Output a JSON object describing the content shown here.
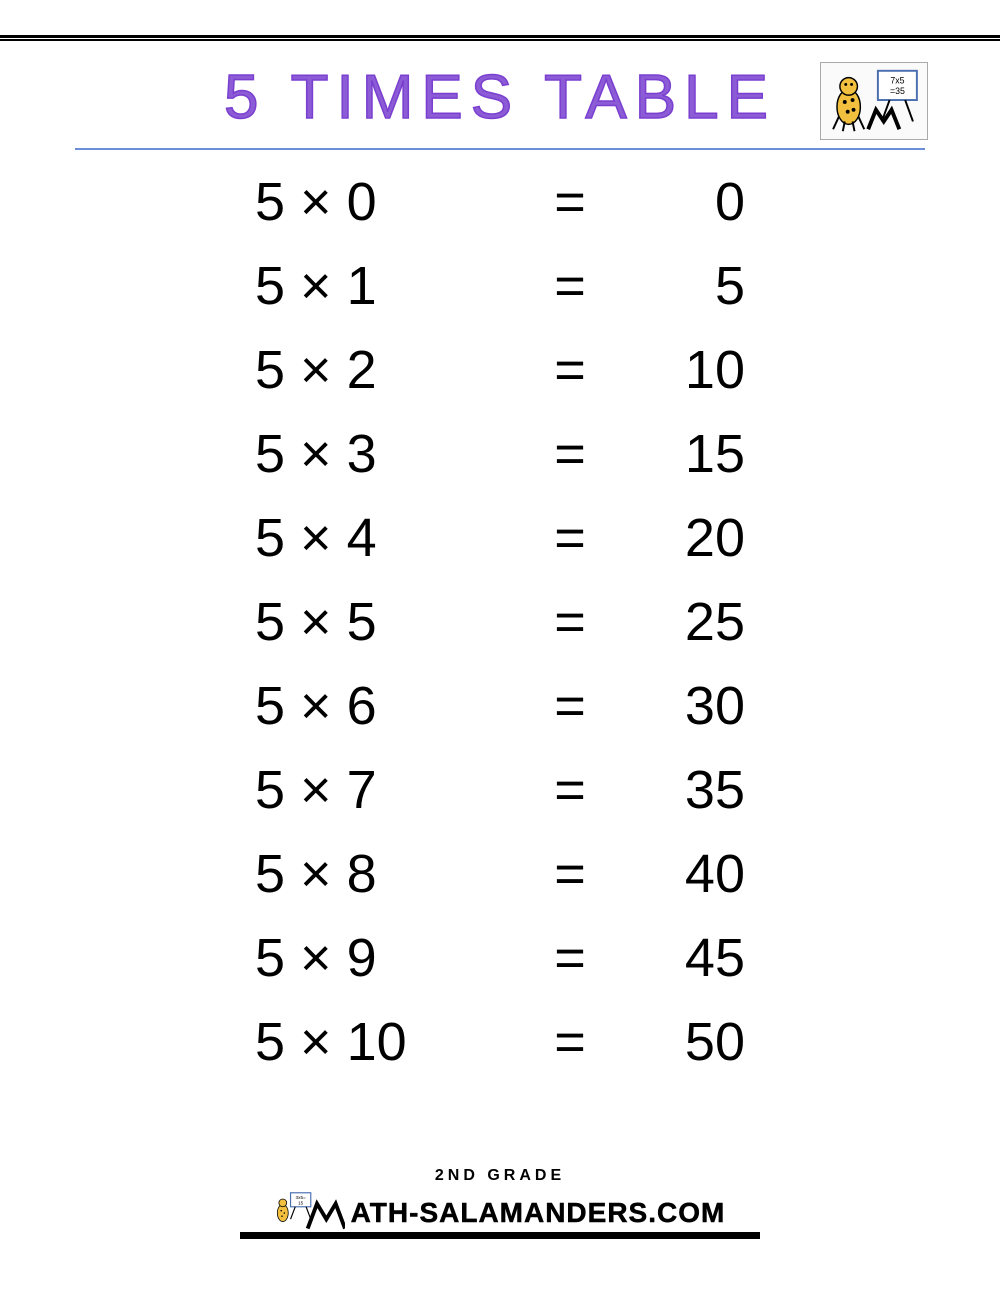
{
  "title": "5 TIMES TABLE",
  "title_color": "#8c5bd6",
  "title_stroke": "#7a3fd0",
  "underline_color": "#6a8fd8",
  "multiplier": 5,
  "rows": [
    {
      "a": "5",
      "op": "×",
      "b": "0",
      "eq": "=",
      "r": "0"
    },
    {
      "a": "5",
      "op": "×",
      "b": "1",
      "eq": "=",
      "r": "5"
    },
    {
      "a": "5",
      "op": "×",
      "b": "2",
      "eq": "=",
      "r": "10"
    },
    {
      "a": "5",
      "op": "×",
      "b": "3",
      "eq": "=",
      "r": "15"
    },
    {
      "a": "5",
      "op": "×",
      "b": "4",
      "eq": "=",
      "r": "20"
    },
    {
      "a": "5",
      "op": "×",
      "b": "5",
      "eq": "=",
      "r": "25"
    },
    {
      "a": "5",
      "op": "×",
      "b": "6",
      "eq": "=",
      "r": "30"
    },
    {
      "a": "5",
      "op": "×",
      "b": "7",
      "eq": "=",
      "r": "35"
    },
    {
      "a": "5",
      "op": "×",
      "b": "8",
      "eq": "=",
      "r": "40"
    },
    {
      "a": "5",
      "op": "×",
      "b": "9",
      "eq": "=",
      "r": "45"
    },
    {
      "a": "5",
      "op": "×",
      "b": "10",
      "eq": "=",
      "r": "50"
    }
  ],
  "footer": {
    "grade": "2ND GRADE",
    "site": "ATH-SALAMANDERS.COM"
  },
  "logo_top": {
    "board_text": "7x5\n=35"
  },
  "logo_bottom": {
    "board_text": "3x5=\n15"
  },
  "colors": {
    "background": "#ffffff",
    "text": "#000000",
    "salamander_body": "#f2c03e",
    "salamander_spots": "#000000",
    "board_fill": "#ffffff",
    "board_border": "#4a6fb0"
  },
  "font_sizes": {
    "title": 62,
    "row": 54,
    "footer_grade": 16,
    "footer_site": 28
  }
}
